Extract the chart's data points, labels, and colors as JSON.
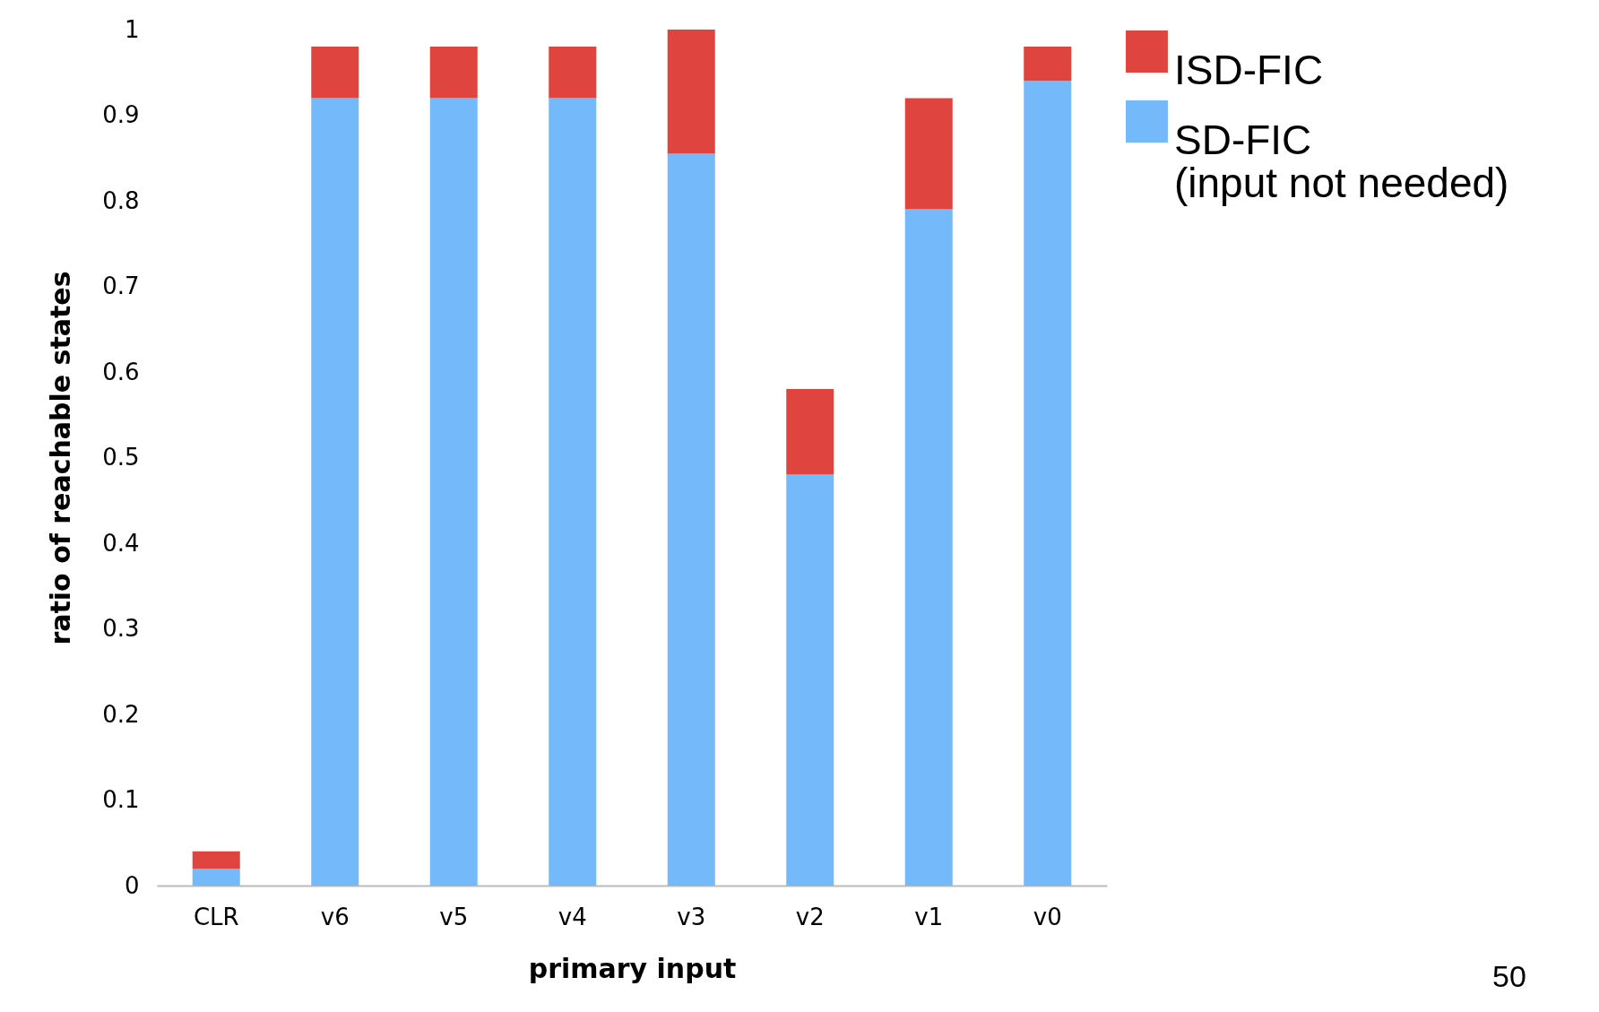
{
  "chart_data": {
    "type": "bar",
    "stacked": true,
    "xlabel": "primary input",
    "ylabel": "ratio of reachable states",
    "categories": [
      "CLR",
      "v6",
      "v5",
      "v4",
      "v3",
      "v2",
      "v1",
      "v0"
    ],
    "series": [
      {
        "name": "SD-FIC\n(input not needed)",
        "color": "#74b9fa",
        "values": [
          0.02,
          0.92,
          0.92,
          0.92,
          0.855,
          0.48,
          0.79,
          0.94
        ]
      },
      {
        "name": "ISD-FIC",
        "color": "#e0443e",
        "values": [
          0.02,
          0.06,
          0.06,
          0.06,
          0.145,
          0.1,
          0.13,
          0.04
        ]
      }
    ],
    "ylim": [
      0,
      1
    ],
    "yticks": [
      0,
      0.1,
      0.2,
      0.3,
      0.4,
      0.5,
      0.6,
      0.7,
      0.8,
      0.9,
      1
    ],
    "grid": false,
    "legend": "top right",
    "annotations": [
      "50"
    ]
  }
}
